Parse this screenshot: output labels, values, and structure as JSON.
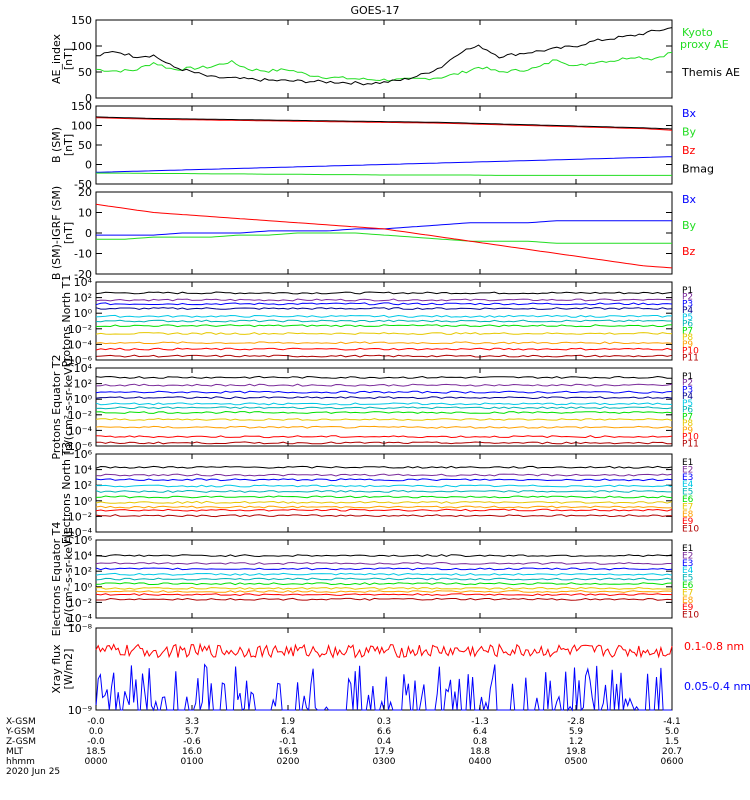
{
  "title": "GOES-17",
  "colors": {
    "black": "#000000",
    "green": "#22dd22",
    "blue": "#0000ff",
    "red": "#ff0000",
    "purple": "#7a2a9a",
    "navy": "#00008b",
    "cyan": "#00c8e6",
    "teal": "#00b4b4",
    "lime": "#00e000",
    "yellow": "#e6c800",
    "orange": "#ffa000",
    "darkred": "#b00000"
  },
  "chart_data": [
    {
      "type": "line",
      "id": "ae",
      "ylabel": "AE_index [nT]",
      "yticks": [
        "150",
        "100",
        "50",
        "0"
      ],
      "ylim": [
        0,
        150
      ],
      "series": [
        {
          "name": "Kyoto proxy AE",
          "color": "#22dd22",
          "values": [
            55,
            52,
            53,
            68,
            55,
            57,
            60,
            70,
            55,
            52,
            55,
            45,
            40,
            38,
            36,
            35,
            35,
            37,
            40,
            48,
            60,
            50,
            53,
            58,
            75,
            60,
            70,
            72,
            80,
            75,
            88
          ]
        },
        {
          "name": "Themis AE",
          "color": "#000000",
          "values": [
            80,
            90,
            80,
            82,
            60,
            50,
            40,
            38,
            36,
            34,
            33,
            32,
            31,
            30,
            28,
            30,
            35,
            45,
            60,
            90,
            100,
            80,
            85,
            90,
            95,
            100,
            110,
            115,
            120,
            128,
            135
          ]
        }
      ]
    },
    {
      "type": "line",
      "id": "b_sm",
      "ylabel": "B (SM) [nT]",
      "yticks": [
        "150",
        "100",
        "50",
        "0",
        "-50"
      ],
      "ylim": [
        -50,
        150
      ],
      "series": [
        {
          "name": "Bx",
          "color": "#0000ff",
          "values": [
            -20,
            -18,
            -16,
            -14,
            -12,
            -10,
            -8,
            -6,
            -4,
            -2,
            0,
            2,
            4,
            6,
            8,
            10,
            12,
            14,
            16,
            18,
            20
          ]
        },
        {
          "name": "By",
          "color": "#22dd22",
          "values": [
            -22,
            -22,
            -23,
            -23,
            -24,
            -24,
            -25,
            -25,
            -26,
            -26,
            -27,
            -27,
            -27,
            -27,
            -28,
            -28,
            -28,
            -28,
            -28,
            -28,
            -28
          ]
        },
        {
          "name": "Bz",
          "color": "#ff0000",
          "values": [
            120,
            118,
            116,
            115,
            114,
            113,
            112,
            111,
            110,
            109,
            108,
            107,
            106,
            104,
            102,
            100,
            98,
            96,
            94,
            92,
            88
          ]
        },
        {
          "name": "Bmag",
          "color": "#000000",
          "values": [
            122,
            120,
            118,
            117,
            116,
            115,
            114,
            113,
            112,
            111,
            110,
            109,
            108,
            106,
            104,
            102,
            100,
            98,
            96,
            94,
            91
          ]
        }
      ]
    },
    {
      "type": "line",
      "id": "b_igrf",
      "ylabel": "B (SM)-IGRF (SM) [nT]",
      "yticks": [
        "20",
        "10",
        "0",
        "-10",
        "-20"
      ],
      "ylim": [
        -20,
        20
      ],
      "series": [
        {
          "name": "Bx",
          "color": "#0000ff",
          "values": [
            -1,
            -1,
            -1,
            0,
            0,
            0,
            1,
            1,
            1,
            2,
            2,
            3,
            4,
            5,
            5,
            5,
            6,
            6,
            6,
            6,
            6
          ]
        },
        {
          "name": "By",
          "color": "#22dd22",
          "values": [
            -3,
            -3,
            -2,
            -2,
            -2,
            -1,
            -1,
            0,
            0,
            0,
            -1,
            -2,
            -3,
            -4,
            -4,
            -4,
            -5,
            -5,
            -5,
            -5,
            -5
          ]
        },
        {
          "name": "Bz",
          "color": "#ff0000",
          "values": [
            14,
            12,
            10,
            9,
            8,
            7,
            6,
            5,
            4,
            3,
            2,
            0,
            -2,
            -4,
            -6,
            -8,
            -10,
            -12,
            -14,
            -16,
            -17
          ]
        }
      ]
    },
    {
      "type": "line",
      "id": "p_north",
      "scale": "log",
      "ylabel": "Protons North T1",
      "yticks": [
        "10⁴",
        "10²",
        "10⁰",
        "10⁻²",
        "10⁻⁴",
        "10⁻⁶"
      ],
      "ylim": [
        -6,
        4
      ],
      "series": [
        {
          "name": "P1",
          "color": "#000000",
          "level": 2.6
        },
        {
          "name": "P2",
          "color": "#7a2a9a",
          "level": 1.7
        },
        {
          "name": "P3",
          "color": "#0000ff",
          "level": 1.2
        },
        {
          "name": "P4",
          "color": "#00008b",
          "level": 0.6
        },
        {
          "name": "P5",
          "color": "#00c8e6",
          "level": -0.4
        },
        {
          "name": "P6",
          "color": "#00b4b4",
          "level": -1.0
        },
        {
          "name": "P7",
          "color": "#00e000",
          "level": -1.6
        },
        {
          "name": "P8",
          "color": "#e6c800",
          "level": -2.6
        },
        {
          "name": "P9",
          "color": "#ffa000",
          "level": -3.8
        },
        {
          "name": "P10",
          "color": "#ff0000",
          "level": -4.6
        },
        {
          "name": "P11",
          "color": "#b00000",
          "level": -5.5
        }
      ]
    },
    {
      "type": "line",
      "id": "p_eq",
      "scale": "log",
      "ylabel": "Protons Equator T2 [p/(cm²-s-sr-keV)]",
      "yticks": [
        "10⁴",
        "10²",
        "10⁰",
        "10⁻²",
        "10⁻⁴",
        "10⁻⁶"
      ],
      "ylim": [
        -6,
        4
      ],
      "series": [
        {
          "name": "P1",
          "color": "#000000",
          "level": 2.8
        },
        {
          "name": "P2",
          "color": "#7a2a9a",
          "level": 1.8
        },
        {
          "name": "P3",
          "color": "#0000ff",
          "level": 0.9
        },
        {
          "name": "P4",
          "color": "#00008b",
          "level": 0.2
        },
        {
          "name": "P5",
          "color": "#00c8e6",
          "level": -0.6
        },
        {
          "name": "P6",
          "color": "#00b4b4",
          "level": -1.1
        },
        {
          "name": "P7",
          "color": "#00e000",
          "level": -1.7
        },
        {
          "name": "P8",
          "color": "#e6c800",
          "level": -2.6
        },
        {
          "name": "P9",
          "color": "#ffa000",
          "level": -3.6
        },
        {
          "name": "P10",
          "color": "#ff0000",
          "level": -4.8
        },
        {
          "name": "P11",
          "color": "#b00000",
          "level": -5.6
        }
      ]
    },
    {
      "type": "line",
      "id": "e_north",
      "scale": "log",
      "ylabel": "Electrons North T3",
      "yticks": [
        "10⁶",
        "10⁴",
        "10²",
        "10⁰",
        "10⁻²",
        "10⁻⁴"
      ],
      "ylim": [
        -4,
        6
      ],
      "series": [
        {
          "name": "E1",
          "color": "#000000",
          "level": 4.3
        },
        {
          "name": "E2",
          "color": "#7a2a9a",
          "level": 3.3
        },
        {
          "name": "E3",
          "color": "#0000ff",
          "level": 2.7
        },
        {
          "name": "E4",
          "color": "#00c8e6",
          "level": 1.9
        },
        {
          "name": "E5",
          "color": "#00b4b4",
          "level": 1.2
        },
        {
          "name": "E6",
          "color": "#00e000",
          "level": 0.5
        },
        {
          "name": "E7",
          "color": "#e6c800",
          "level": -0.2
        },
        {
          "name": "E8",
          "color": "#ffa000",
          "level": -0.8
        },
        {
          "name": "E9",
          "color": "#ff0000",
          "level": -1.2
        },
        {
          "name": "E10",
          "color": "#b00000",
          "level": -1.9
        }
      ]
    },
    {
      "type": "line",
      "id": "e_eq",
      "scale": "log",
      "ylabel": "Electrons Equator T4 [e/(cm²-s-sr-keV)]",
      "yticks": [
        "10⁶",
        "10⁴",
        "10²",
        "10⁰",
        "10⁻²",
        "10⁻⁴"
      ],
      "ylim": [
        -4,
        6
      ],
      "series": [
        {
          "name": "E1",
          "color": "#000000",
          "level": 4.0
        },
        {
          "name": "E2",
          "color": "#7a2a9a",
          "level": 3.0
        },
        {
          "name": "E3",
          "color": "#0000ff",
          "level": 2.3
        },
        {
          "name": "E4",
          "color": "#00c8e6",
          "level": 1.6
        },
        {
          "name": "E5",
          "color": "#00b4b4",
          "level": 1.0
        },
        {
          "name": "E6",
          "color": "#00e000",
          "level": 0.4
        },
        {
          "name": "E7",
          "color": "#e6c800",
          "level": -0.2
        },
        {
          "name": "E8",
          "color": "#ffa000",
          "level": -0.6
        },
        {
          "name": "E9",
          "color": "#ff0000",
          "level": -1.0
        },
        {
          "name": "E10",
          "color": "#b00000",
          "level": -1.6
        }
      ]
    },
    {
      "type": "line",
      "id": "xray",
      "scale": "log",
      "ylabel": "Xray flux [W/m2]",
      "yticks": [
        "10⁻⁸",
        "10⁻⁹"
      ],
      "ylim": [
        -9,
        -8
      ],
      "series": [
        {
          "name": "0.1-0.8 nm",
          "color": "#ff0000",
          "level": -8.28
        },
        {
          "name": "0.05-0.4 nm",
          "color": "#0000ff",
          "level": -8.78
        }
      ]
    }
  ],
  "x_axis": {
    "row_labels": [
      "X-GSM",
      "Y-GSM",
      "Z-GSM",
      "MLT",
      "hhmm"
    ],
    "columns": [
      [
        "-0.0",
        "0.0",
        "-0.0",
        "18.5",
        "0000"
      ],
      [
        "3.3",
        "5.7",
        "-0.6",
        "16.0",
        "0100"
      ],
      [
        "1.9",
        "6.4",
        "-0.1",
        "16.9",
        "0200"
      ],
      [
        "0.3",
        "6.6",
        "0.4",
        "17.9",
        "0300"
      ],
      [
        "-1.3",
        "6.4",
        "0.8",
        "18.8",
        "0400"
      ],
      [
        "-2.8",
        "5.9",
        "1.2",
        "19.8",
        "0500"
      ],
      [
        "-4.1",
        "5.0",
        "1.5",
        "20.7",
        "0600"
      ]
    ],
    "date": "2020 Jun 25"
  }
}
